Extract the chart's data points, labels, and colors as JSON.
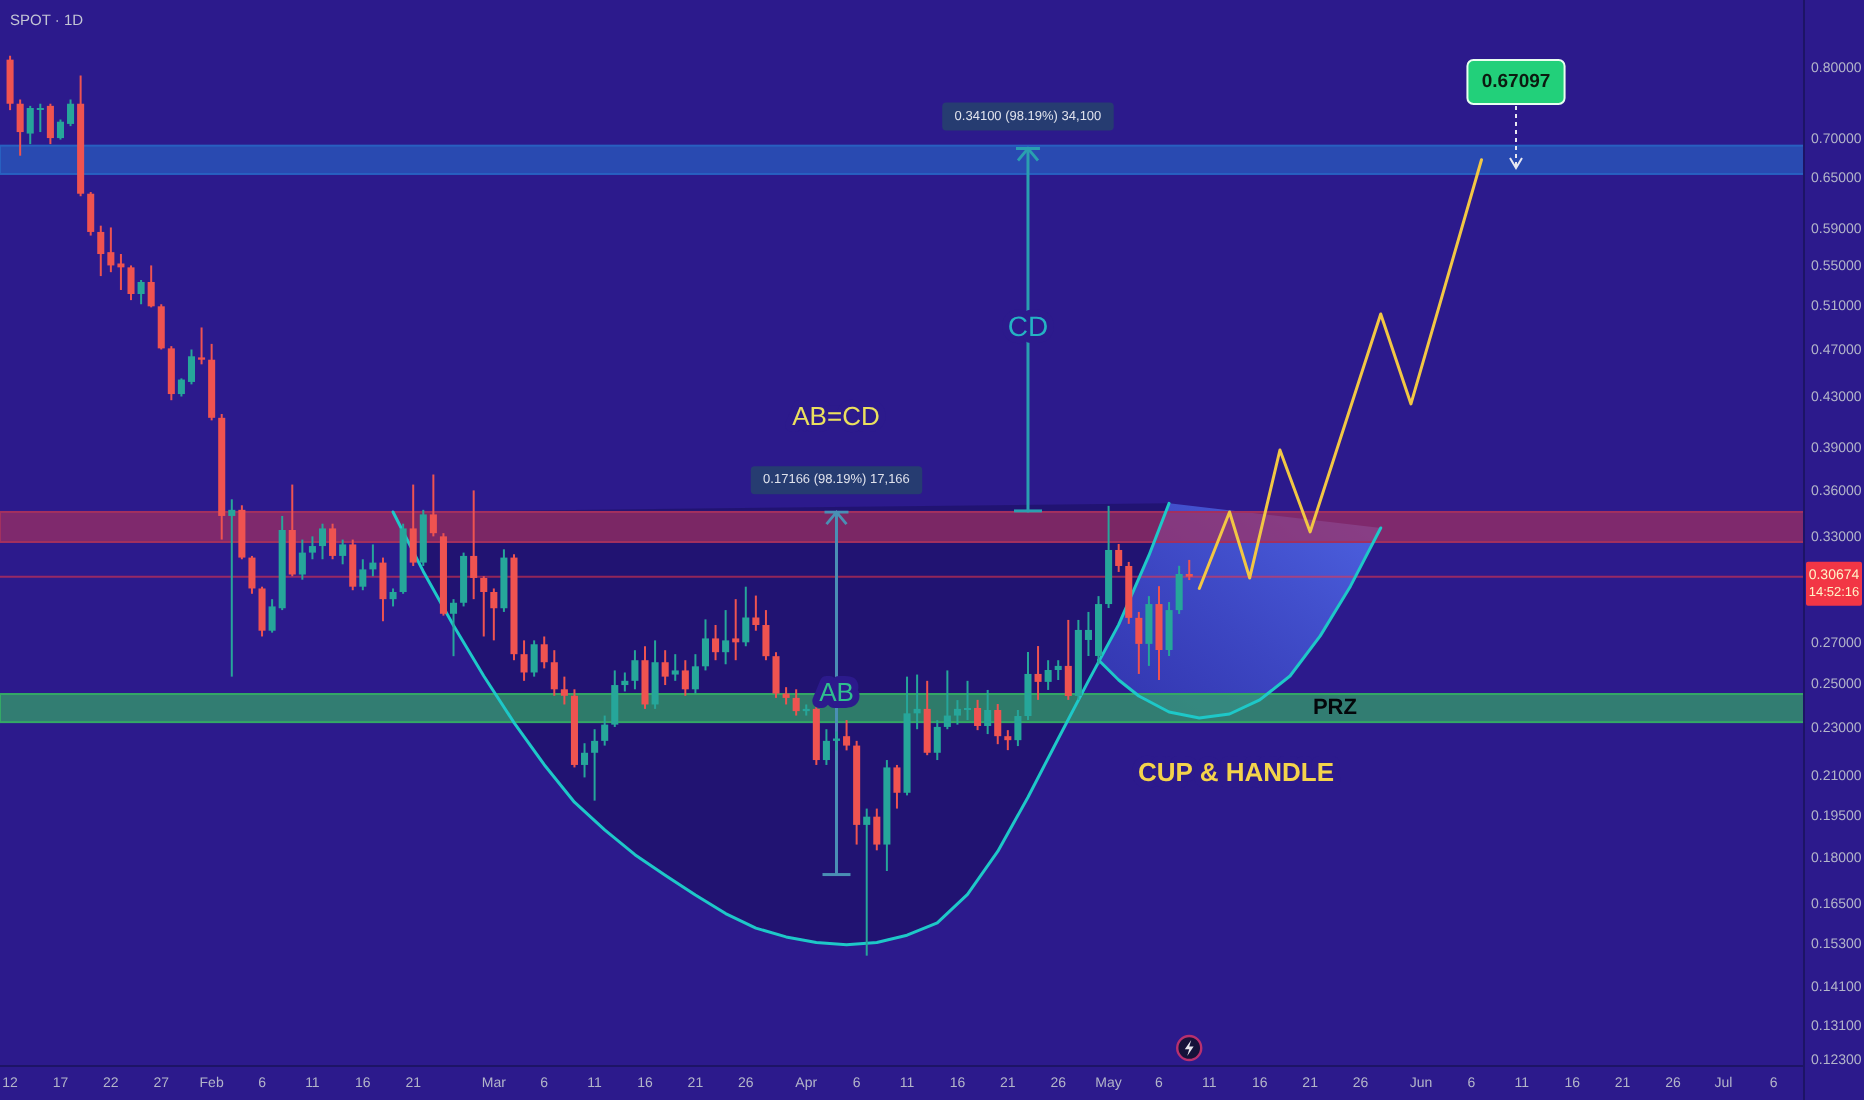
{
  "chart_data": {
    "type": "candlestick",
    "title": "SPOT · 1D",
    "log": true,
    "xlim": [
      "--01-11",
      "--07-09"
    ],
    "ylim": [
      0.1218,
      0.911
    ],
    "xticks": [
      {
        "value": "--01-12",
        "label": "12"
      },
      {
        "value": "--01-17",
        "label": "17"
      },
      {
        "value": "--01-22",
        "label": "22"
      },
      {
        "value": "--01-27",
        "label": "27"
      },
      {
        "value": "--02-01",
        "label": "Feb"
      },
      {
        "value": "--02-06",
        "label": "6"
      },
      {
        "value": "--02-11",
        "label": "11"
      },
      {
        "value": "--02-16",
        "label": "16"
      },
      {
        "value": "--02-21",
        "label": "21"
      },
      {
        "value": "--03-01",
        "label": "Mar"
      },
      {
        "value": "--03-06",
        "label": "6"
      },
      {
        "value": "--03-11",
        "label": "11"
      },
      {
        "value": "--03-16",
        "label": "16"
      },
      {
        "value": "--03-21",
        "label": "21"
      },
      {
        "value": "--03-26",
        "label": "26"
      },
      {
        "value": "--04-01",
        "label": "Apr"
      },
      {
        "value": "--04-06",
        "label": "6"
      },
      {
        "value": "--04-11",
        "label": "11"
      },
      {
        "value": "--04-16",
        "label": "16"
      },
      {
        "value": "--04-21",
        "label": "21"
      },
      {
        "value": "--04-26",
        "label": "26"
      },
      {
        "value": "--05-01",
        "label": "May"
      },
      {
        "value": "--05-06",
        "label": "6"
      },
      {
        "value": "--05-11",
        "label": "11"
      },
      {
        "value": "--05-16",
        "label": "16"
      },
      {
        "value": "--05-21",
        "label": "21"
      },
      {
        "value": "--05-26",
        "label": "26"
      },
      {
        "value": "--06-01",
        "label": "Jun"
      },
      {
        "value": "--06-06",
        "label": "6"
      },
      {
        "value": "--06-11",
        "label": "11"
      },
      {
        "value": "--06-16",
        "label": "16"
      },
      {
        "value": "--06-21",
        "label": "21"
      },
      {
        "value": "--06-26",
        "label": "26"
      },
      {
        "value": "--07-01",
        "label": "Jul"
      },
      {
        "value": "--07-06",
        "label": "6"
      }
    ],
    "yticks": [
      {
        "value": 0.8,
        "label": "0.80000"
      },
      {
        "value": 0.7,
        "label": "0.70000"
      },
      {
        "value": 0.65,
        "label": "0.65000"
      },
      {
        "value": 0.59,
        "label": "0.59000"
      },
      {
        "value": 0.55,
        "label": "0.55000"
      },
      {
        "value": 0.51,
        "label": "0.51000"
      },
      {
        "value": 0.47,
        "label": "0.47000"
      },
      {
        "value": 0.43,
        "label": "0.43000"
      },
      {
        "value": 0.39,
        "label": "0.39000"
      },
      {
        "value": 0.36,
        "label": "0.36000"
      },
      {
        "value": 0.33,
        "label": "0.33000"
      },
      {
        "value": 0.27,
        "label": "0.27000"
      },
      {
        "value": 0.25,
        "label": "0.25000"
      },
      {
        "value": 0.23,
        "label": "0.23000"
      },
      {
        "value": 0.21,
        "label": "0.21000"
      },
      {
        "value": 0.195,
        "label": "0.19500"
      },
      {
        "value": 0.18,
        "label": "0.18000"
      },
      {
        "value": 0.165,
        "label": "0.16500"
      },
      {
        "value": 0.153,
        "label": "0.15300"
      },
      {
        "value": 0.141,
        "label": "0.14100"
      },
      {
        "value": 0.131,
        "label": "0.13100"
      },
      {
        "value": 0.123,
        "label": "0.12300"
      }
    ],
    "x": [
      "--01-12",
      "--01-13",
      "--01-14",
      "--01-15",
      "--01-16",
      "--01-17",
      "--01-18",
      "--01-19",
      "--01-20",
      "--01-21",
      "--01-22",
      "--01-23",
      "--01-24",
      "--01-25",
      "--01-26",
      "--01-27",
      "--01-28",
      "--01-29",
      "--01-30",
      "--01-31",
      "--02-01",
      "--02-02",
      "--02-03",
      "--02-04",
      "--02-05",
      "--02-06",
      "--02-07",
      "--02-08",
      "--02-09",
      "--02-10",
      "--02-11",
      "--02-12",
      "--02-13",
      "--02-14",
      "--02-15",
      "--02-16",
      "--02-17",
      "--02-18",
      "--02-19",
      "--02-20",
      "--02-21",
      "--02-22",
      "--02-23",
      "--02-24",
      "--02-25",
      "--02-26",
      "--02-27",
      "--02-28",
      "--03-01",
      "--03-02",
      "--03-03",
      "--03-04",
      "--03-05",
      "--03-06",
      "--03-07",
      "--03-08",
      "--03-09",
      "--03-10",
      "--03-11",
      "--03-12",
      "--03-13",
      "--03-14",
      "--03-15",
      "--03-16",
      "--03-17",
      "--03-18",
      "--03-19",
      "--03-20",
      "--03-21",
      "--03-22",
      "--03-23",
      "--03-24",
      "--03-25",
      "--03-26",
      "--03-27",
      "--03-28",
      "--03-29",
      "--03-30",
      "--03-31",
      "--04-01",
      "--04-02",
      "--04-03",
      "--04-04",
      "--04-05",
      "--04-06",
      "--04-07",
      "--04-08",
      "--04-09",
      "--04-10",
      "--04-11",
      "--04-12",
      "--04-13",
      "--04-14",
      "--04-15",
      "--04-16",
      "--04-17",
      "--04-18",
      "--04-19",
      "--04-20",
      "--04-21",
      "--04-22",
      "--04-23",
      "--04-24",
      "--04-25",
      "--04-26",
      "--04-27",
      "--04-28",
      "--04-29",
      "--04-30",
      "--05-01",
      "--05-02",
      "--05-03",
      "--05-04",
      "--05-05",
      "--05-06",
      "--05-07",
      "--05-08",
      "--05-09"
    ],
    "ohlc": [
      [
        0.814,
        0.82,
        0.74,
        0.749
      ],
      [
        0.749,
        0.755,
        0.679,
        0.71
      ],
      [
        0.708,
        0.746,
        0.694,
        0.743
      ],
      [
        0.742,
        0.749,
        0.71,
        0.743
      ],
      [
        0.746,
        0.749,
        0.694,
        0.702
      ],
      [
        0.702,
        0.727,
        0.7,
        0.724
      ],
      [
        0.721,
        0.755,
        0.718,
        0.749
      ],
      [
        0.749,
        0.79,
        0.629,
        0.632
      ],
      [
        0.632,
        0.634,
        0.584,
        0.588
      ],
      [
        0.588,
        0.595,
        0.541,
        0.564
      ],
      [
        0.566,
        0.593,
        0.545,
        0.552
      ],
      [
        0.554,
        0.564,
        0.527,
        0.55
      ],
      [
        0.55,
        0.552,
        0.517,
        0.523
      ],
      [
        0.523,
        0.537,
        0.513,
        0.535
      ],
      [
        0.535,
        0.552,
        0.51,
        0.511
      ],
      [
        0.511,
        0.513,
        0.471,
        0.472
      ],
      [
        0.472,
        0.474,
        0.428,
        0.433
      ],
      [
        0.433,
        0.446,
        0.431,
        0.445
      ],
      [
        0.443,
        0.471,
        0.441,
        0.465
      ],
      [
        0.464,
        0.491,
        0.458,
        0.462
      ],
      [
        0.462,
        0.476,
        0.412,
        0.414
      ],
      [
        0.414,
        0.417,
        0.329,
        0.344
      ],
      [
        0.344,
        0.355,
        0.254,
        0.348
      ],
      [
        0.348,
        0.351,
        0.317,
        0.318
      ],
      [
        0.318,
        0.319,
        0.297,
        0.3
      ],
      [
        0.3,
        0.301,
        0.274,
        0.277
      ],
      [
        0.277,
        0.294,
        0.276,
        0.29
      ],
      [
        0.289,
        0.344,
        0.288,
        0.335
      ],
      [
        0.335,
        0.365,
        0.307,
        0.308
      ],
      [
        0.308,
        0.329,
        0.305,
        0.321
      ],
      [
        0.321,
        0.331,
        0.317,
        0.325
      ],
      [
        0.325,
        0.339,
        0.317,
        0.336
      ],
      [
        0.336,
        0.339,
        0.317,
        0.319
      ],
      [
        0.319,
        0.329,
        0.314,
        0.326
      ],
      [
        0.326,
        0.329,
        0.299,
        0.301
      ],
      [
        0.301,
        0.317,
        0.299,
        0.311
      ],
      [
        0.311,
        0.326,
        0.307,
        0.315
      ],
      [
        0.315,
        0.318,
        0.282,
        0.294
      ],
      [
        0.294,
        0.3,
        0.29,
        0.298
      ],
      [
        0.298,
        0.339,
        0.297,
        0.336
      ],
      [
        0.336,
        0.365,
        0.313,
        0.315
      ],
      [
        0.315,
        0.348,
        0.313,
        0.345
      ],
      [
        0.345,
        0.372,
        0.331,
        0.333
      ],
      [
        0.331,
        0.333,
        0.285,
        0.286
      ],
      [
        0.286,
        0.294,
        0.264,
        0.292
      ],
      [
        0.292,
        0.321,
        0.29,
        0.319
      ],
      [
        0.319,
        0.361,
        0.294,
        0.306
      ],
      [
        0.306,
        0.307,
        0.274,
        0.298
      ],
      [
        0.298,
        0.3,
        0.272,
        0.289
      ],
      [
        0.289,
        0.323,
        0.287,
        0.318
      ],
      [
        0.318,
        0.32,
        0.262,
        0.265
      ],
      [
        0.265,
        0.272,
        0.252,
        0.256
      ],
      [
        0.256,
        0.272,
        0.254,
        0.27
      ],
      [
        0.27,
        0.274,
        0.258,
        0.261
      ],
      [
        0.261,
        0.267,
        0.245,
        0.248
      ],
      [
        0.248,
        0.254,
        0.241,
        0.245
      ],
      [
        0.245,
        0.248,
        0.214,
        0.215
      ],
      [
        0.215,
        0.224,
        0.21,
        0.22
      ],
      [
        0.22,
        0.23,
        0.201,
        0.225
      ],
      [
        0.225,
        0.236,
        0.223,
        0.232
      ],
      [
        0.232,
        0.257,
        0.231,
        0.25
      ],
      [
        0.25,
        0.256,
        0.247,
        0.252
      ],
      [
        0.252,
        0.267,
        0.248,
        0.262
      ],
      [
        0.262,
        0.269,
        0.239,
        0.241
      ],
      [
        0.241,
        0.272,
        0.239,
        0.261
      ],
      [
        0.261,
        0.267,
        0.25,
        0.254
      ],
      [
        0.255,
        0.265,
        0.252,
        0.257
      ],
      [
        0.257,
        0.262,
        0.245,
        0.248
      ],
      [
        0.248,
        0.265,
        0.246,
        0.259
      ],
      [
        0.259,
        0.283,
        0.257,
        0.273
      ],
      [
        0.273,
        0.28,
        0.262,
        0.266
      ],
      [
        0.266,
        0.288,
        0.26,
        0.272
      ],
      [
        0.273,
        0.294,
        0.262,
        0.271
      ],
      [
        0.271,
        0.301,
        0.269,
        0.284
      ],
      [
        0.284,
        0.296,
        0.277,
        0.28
      ],
      [
        0.28,
        0.288,
        0.262,
        0.264
      ],
      [
        0.264,
        0.266,
        0.244,
        0.246
      ],
      [
        0.246,
        0.249,
        0.241,
        0.244
      ],
      [
        0.244,
        0.248,
        0.236,
        0.238
      ],
      [
        0.238,
        0.241,
        0.236,
        0.239
      ],
      [
        0.239,
        0.24,
        0.215,
        0.217
      ],
      [
        0.217,
        0.23,
        0.215,
        0.225
      ],
      [
        0.225,
        0.229,
        0.221,
        0.226
      ],
      [
        0.227,
        0.234,
        0.221,
        0.223
      ],
      [
        0.223,
        0.225,
        0.185,
        0.192
      ],
      [
        0.192,
        0.198,
        0.15,
        0.195
      ],
      [
        0.195,
        0.198,
        0.183,
        0.185
      ],
      [
        0.185,
        0.217,
        0.176,
        0.214
      ],
      [
        0.214,
        0.215,
        0.198,
        0.204
      ],
      [
        0.204,
        0.254,
        0.203,
        0.237
      ],
      [
        0.237,
        0.255,
        0.23,
        0.239
      ],
      [
        0.239,
        0.252,
        0.219,
        0.22
      ],
      [
        0.22,
        0.234,
        0.217,
        0.231
      ],
      [
        0.231,
        0.257,
        0.23,
        0.236
      ],
      [
        0.236,
        0.243,
        0.232,
        0.239
      ],
      [
        0.2385,
        0.252,
        0.234,
        0.2394
      ],
      [
        0.2394,
        0.2431,
        0.2296,
        0.2314
      ],
      [
        0.2314,
        0.2477,
        0.2279,
        0.2385
      ],
      [
        0.2385,
        0.2412,
        0.2236,
        0.227
      ],
      [
        0.227,
        0.2296,
        0.2211,
        0.2253
      ],
      [
        0.2253,
        0.2385,
        0.2228,
        0.2358
      ],
      [
        0.2358,
        0.2661,
        0.234,
        0.2553
      ],
      [
        0.2553,
        0.2691,
        0.2431,
        0.2515
      ],
      [
        0.2515,
        0.262,
        0.2477,
        0.2572
      ],
      [
        0.2572,
        0.262,
        0.2524,
        0.2592
      ],
      [
        0.2592,
        0.2827,
        0.2431,
        0.2449
      ],
      [
        0.2449,
        0.2827,
        0.2431,
        0.2774
      ],
      [
        0.2722,
        0.287,
        0.2641,
        0.2774
      ],
      [
        0.2641,
        0.2957,
        0.26,
        0.2913
      ],
      [
        0.2913,
        0.3506,
        0.2891,
        0.3226
      ],
      [
        0.3226,
        0.3263,
        0.3095,
        0.313
      ],
      [
        0.313,
        0.3154,
        0.2806,
        0.2838
      ],
      [
        0.2838,
        0.287,
        0.2553,
        0.2702
      ],
      [
        0.2702,
        0.2957,
        0.2592,
        0.2913
      ],
      [
        0.2913,
        0.3013,
        0.2524,
        0.2671
      ],
      [
        0.2671,
        0.2924,
        0.2641,
        0.288
      ],
      [
        0.288,
        0.3131,
        0.2859,
        0.3083
      ],
      [
        0.3083,
        0.3166,
        0.3048,
        0.30674
      ]
    ],
    "colors": [
      "#ef5350",
      "#ef5350",
      "#26a69a",
      "#26a69a",
      "#ef5350",
      "#26a69a",
      "#26a69a",
      "#ef5350",
      "#ef5350",
      "#ef5350",
      "#ef5350",
      "#ef5350",
      "#ef5350",
      "#26a69a",
      "#ef5350",
      "#ef5350",
      "#ef5350",
      "#26a69a",
      "#26a69a",
      "#ef5350",
      "#ef5350",
      "#ef5350",
      "#26a69a",
      "#ef5350",
      "#ef5350",
      "#ef5350",
      "#26a69a",
      "#26a69a",
      "#ef5350",
      "#26a69a",
      "#26a69a",
      "#26a69a",
      "#ef5350",
      "#26a69a",
      "#ef5350",
      "#26a69a",
      "#26a69a",
      "#ef5350",
      "#26a69a",
      "#26a69a",
      "#ef5350",
      "#26a69a",
      "#ef5350",
      "#ef5350",
      "#26a69a",
      "#26a69a",
      "#ef5350",
      "#ef5350",
      "#ef5350",
      "#26a69a",
      "#ef5350",
      "#ef5350",
      "#26a69a",
      "#ef5350",
      "#ef5350",
      "#ef5350",
      "#ef5350",
      "#26a69a",
      "#26a69a",
      "#26a69a",
      "#26a69a",
      "#26a69a",
      "#26a69a",
      "#ef5350",
      "#26a69a",
      "#ef5350",
      "#26a69a",
      "#ef5350",
      "#26a69a",
      "#26a69a",
      "#ef5350",
      "#26a69a",
      "#ef5350",
      "#26a69a",
      "#ef5350",
      "#ef5350",
      "#ef5350",
      "#ef5350",
      "#ef5350",
      "#26a69a",
      "#ef5350",
      "#26a69a",
      "#26a69a",
      "#ef5350",
      "#ef5350",
      "#26a69a",
      "#ef5350",
      "#26a69a",
      "#ef5350",
      "#26a69a",
      "#26a69a",
      "#ef5350",
      "#26a69a",
      "#26a69a",
      "#26a69a",
      "#26a69a",
      "#ef5350",
      "#26a69a",
      "#ef5350",
      "#ef5350",
      "#26a69a",
      "#26a69a",
      "#ef5350",
      "#26a69a",
      "#26a69a",
      "#ef5350",
      "#26a69a",
      "#26a69a",
      "#26a69a",
      "#26a69a",
      "#ef5350",
      "#ef5350",
      "#ef5350",
      "#26a69a",
      "#ef5350",
      "#26a69a",
      "#26a69a",
      "#ef5350"
    ],
    "series": [
      {
        "type": "line",
        "color": "#1ec8c8",
        "x": [
          "--02-19",
          "--02-22",
          "--02-25",
          "--02-28",
          "--03-03",
          "--03-06",
          "--03-09",
          "--03-12",
          "--03-15",
          "--03-18",
          "--03-21",
          "--03-24",
          "--03-27",
          "--03-30",
          "--04-02",
          "--04-05",
          "--04-08",
          "--04-11",
          "--04-14",
          "--04-17",
          "--04-20",
          "--04-23",
          "--04-26",
          "--04-29",
          "--05-02",
          "--05-05",
          "--05-07"
        ],
        "values": [
          0.3466,
          0.3098,
          0.2797,
          0.2543,
          0.2329,
          0.2151,
          0.2004,
          0.1902,
          0.1815,
          0.1746,
          0.1682,
          0.1624,
          0.158,
          0.1554,
          0.1538,
          0.1531,
          0.1538,
          0.1559,
          0.1596,
          0.1684,
          0.1826,
          0.2023,
          0.2259,
          0.252,
          0.2802,
          0.3193,
          0.3523
        ]
      },
      {
        "type": "line",
        "color": "#1ec8c8",
        "x": [
          "--04-30",
          "--05-02",
          "--05-04",
          "--05-07",
          "--05-10",
          "--05-13",
          "--05-16",
          "--05-19",
          "--05-22",
          "--05-25",
          "--05-28"
        ],
        "values": [
          0.2621,
          0.2524,
          0.2449,
          0.2376,
          0.2349,
          0.2367,
          0.2431,
          0.2543,
          0.2743,
          0.3013,
          0.3363
        ]
      },
      {
        "type": "line",
        "color": "#f2c744",
        "x": [
          "--05-10",
          "--05-13",
          "--05-15",
          "--05-18",
          "--05-21",
          "--05-28",
          "--05-31",
          "--06-07"
        ],
        "values": [
          0.3,
          0.3466,
          0.306,
          0.3896,
          0.3338,
          0.5037,
          0.425,
          0.6738
        ]
      },
      {
        "type": "line",
        "color": "#4a8fb5",
        "x": [
          "--04-04",
          "--04-04"
        ],
        "values": [
          0.17482,
          0.34648
        ]
      },
      {
        "type": "line",
        "color": "#2a9fb0",
        "x": [
          "--04-23",
          "--04-23"
        ],
        "values": [
          0.34729,
          0.68829
        ]
      }
    ],
    "bands": [
      {
        "axis": "y",
        "from": 0.656,
        "to": 0.692,
        "color": "#2860c0"
      },
      {
        "axis": "y",
        "from": 0.3275,
        "to": 0.3466,
        "color": "#a3305f"
      },
      {
        "axis": "y",
        "from": 0.2331,
        "to": 0.2458,
        "label": "PRZ",
        "color": "#34a866"
      }
    ],
    "ref_lines": [
      {
        "axis": "y",
        "value": 0.30674,
        "label": "0.30674",
        "color": "#f23645"
      }
    ],
    "annotations": [
      {
        "text": "0.34100 (98.19%) 34,100",
        "x": "--04-23",
        "y": 0.68829
      },
      {
        "text": "CD",
        "x": "--04-23",
        "y": 0.4924
      },
      "AB=CD",
      {
        "text": "0.17166 (98.19%) 17,166",
        "x": "--04-04",
        "y": 0.34648
      },
      {
        "text": "AB",
        "x": "--04-04",
        "y": 0.2467
      },
      "CUP & HANDLE",
      "0.67097",
      "14:52:16"
    ]
  }
}
